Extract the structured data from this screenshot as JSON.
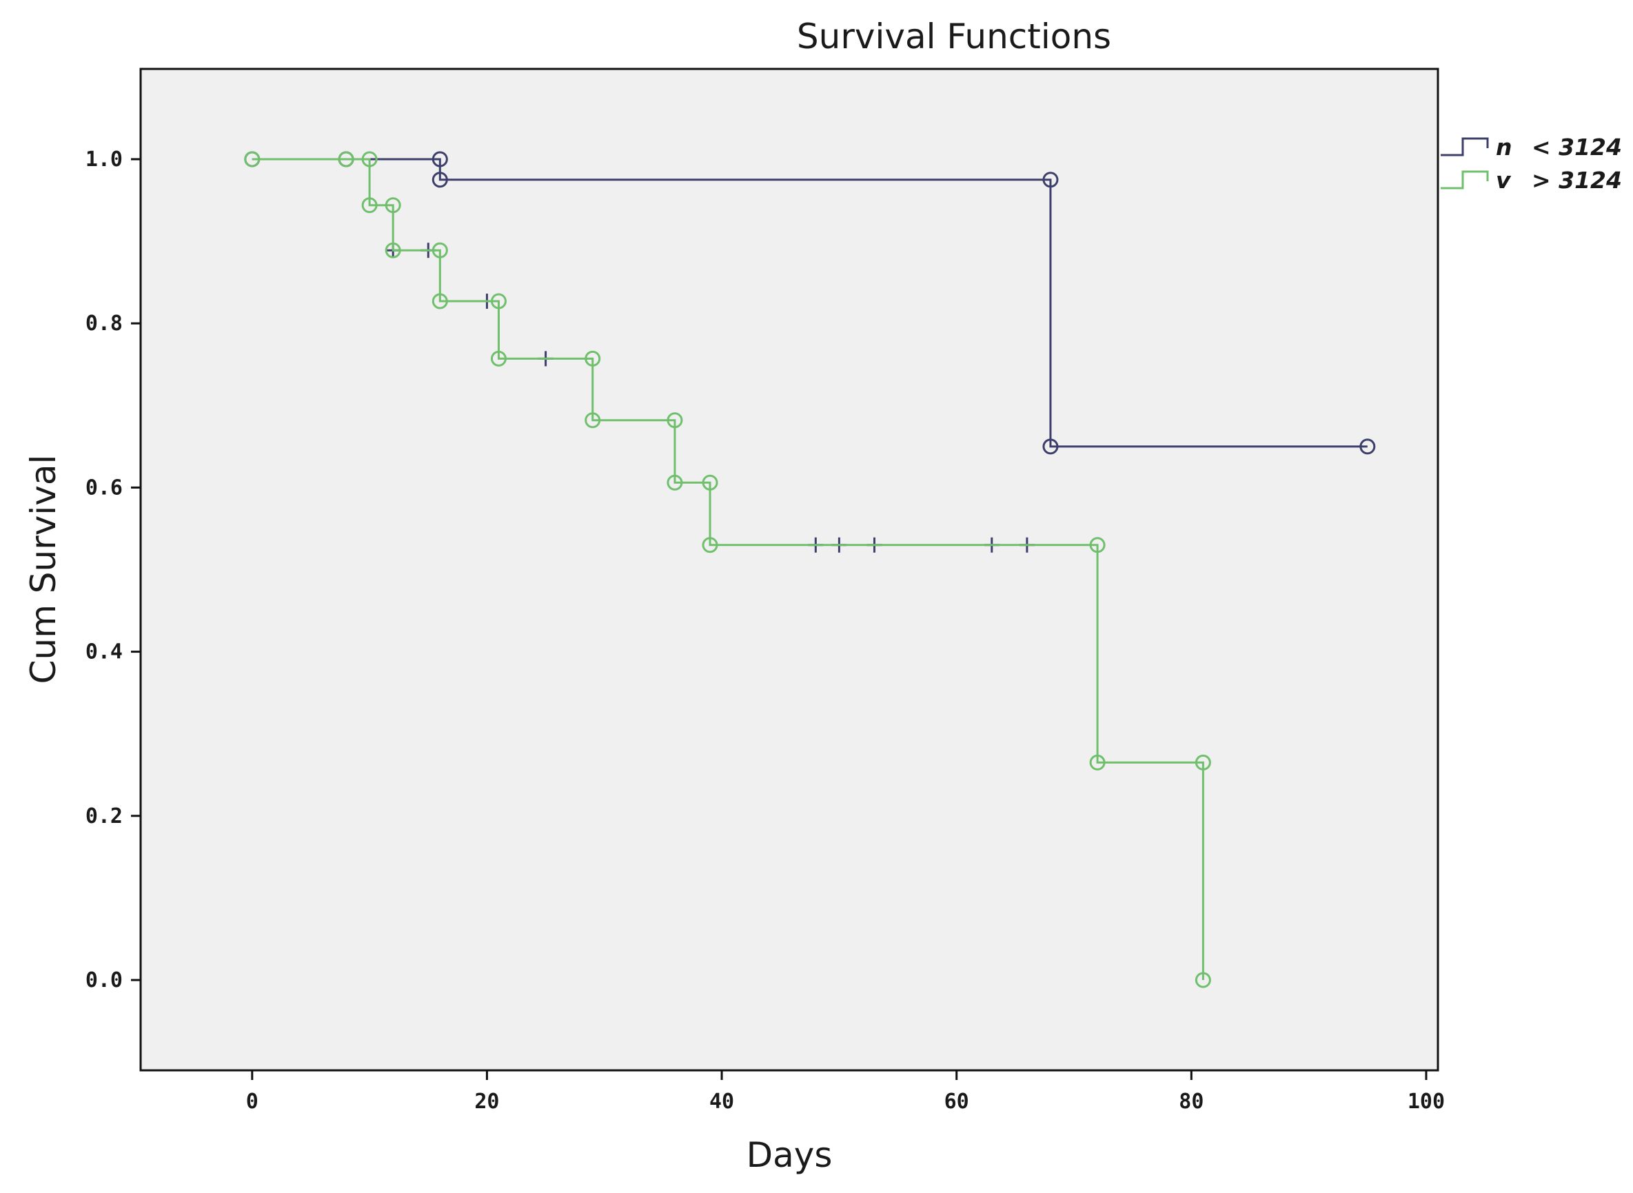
{
  "chart_data": {
    "type": "line",
    "subtype": "kaplan-meier step",
    "title": "Survival Functions",
    "xlabel": "Days",
    "ylabel": "Cum Survival",
    "xlim": [
      -9.5,
      101
    ],
    "ylim": [
      -0.11,
      1.11
    ],
    "xticks": [
      "0",
      "20",
      "40",
      "60",
      "80",
      "100"
    ],
    "xtick_values": [
      0,
      20,
      40,
      60,
      80,
      100
    ],
    "yticks": [
      "0.0",
      "0.2",
      "0.4",
      "0.6",
      "0.8",
      "1.0"
    ],
    "ytick_values": [
      0,
      0.2,
      0.4,
      0.6,
      0.8,
      1.0
    ],
    "grid": false,
    "legend_position": "right, outside top",
    "series": [
      {
        "name": "n < 3124",
        "legend_code": "n",
        "legend_label": "< 3124",
        "color": "#3d3f6b",
        "steps": [
          [
            0,
            1.0
          ],
          [
            16,
            0.975
          ],
          [
            68,
            0.65
          ],
          [
            95,
            0.65
          ]
        ],
        "event_markers": [
          [
            0,
            1.0
          ],
          [
            8,
            1.0
          ],
          [
            16,
            1.0
          ],
          [
            16,
            0.975
          ],
          [
            68,
            0.975
          ],
          [
            68,
            0.65
          ],
          [
            95,
            0.65
          ]
        ],
        "censored_markers": [
          [
            12,
            0.889
          ],
          [
            15,
            0.889
          ],
          [
            20,
            0.827
          ],
          [
            25,
            0.757
          ],
          [
            48,
            0.53
          ],
          [
            50,
            0.53
          ],
          [
            53,
            0.53
          ],
          [
            63,
            0.53
          ],
          [
            66,
            0.53
          ]
        ]
      },
      {
        "name": "v > 3124",
        "legend_code": "v",
        "legend_label": "> 3124",
        "color": "#6fbf6c",
        "steps": [
          [
            0,
            1.0
          ],
          [
            10,
            0.944
          ],
          [
            12,
            0.889
          ],
          [
            16,
            0.827
          ],
          [
            21,
            0.757
          ],
          [
            29,
            0.682
          ],
          [
            36,
            0.606
          ],
          [
            39,
            0.53
          ],
          [
            72,
            0.265
          ],
          [
            81,
            0.0
          ]
        ],
        "event_markers": [
          [
            0,
            1.0
          ],
          [
            8,
            1.0
          ],
          [
            10,
            1.0
          ],
          [
            10,
            0.944
          ],
          [
            12,
            0.944
          ],
          [
            12,
            0.889
          ],
          [
            16,
            0.889
          ],
          [
            16,
            0.827
          ],
          [
            21,
            0.827
          ],
          [
            21,
            0.757
          ],
          [
            29,
            0.757
          ],
          [
            29,
            0.682
          ],
          [
            36,
            0.682
          ],
          [
            36,
            0.606
          ],
          [
            39,
            0.606
          ],
          [
            39,
            0.53
          ],
          [
            72,
            0.53
          ],
          [
            72,
            0.265
          ],
          [
            81,
            0.265
          ],
          [
            81,
            0.0
          ]
        ],
        "censored_markers": []
      }
    ]
  }
}
